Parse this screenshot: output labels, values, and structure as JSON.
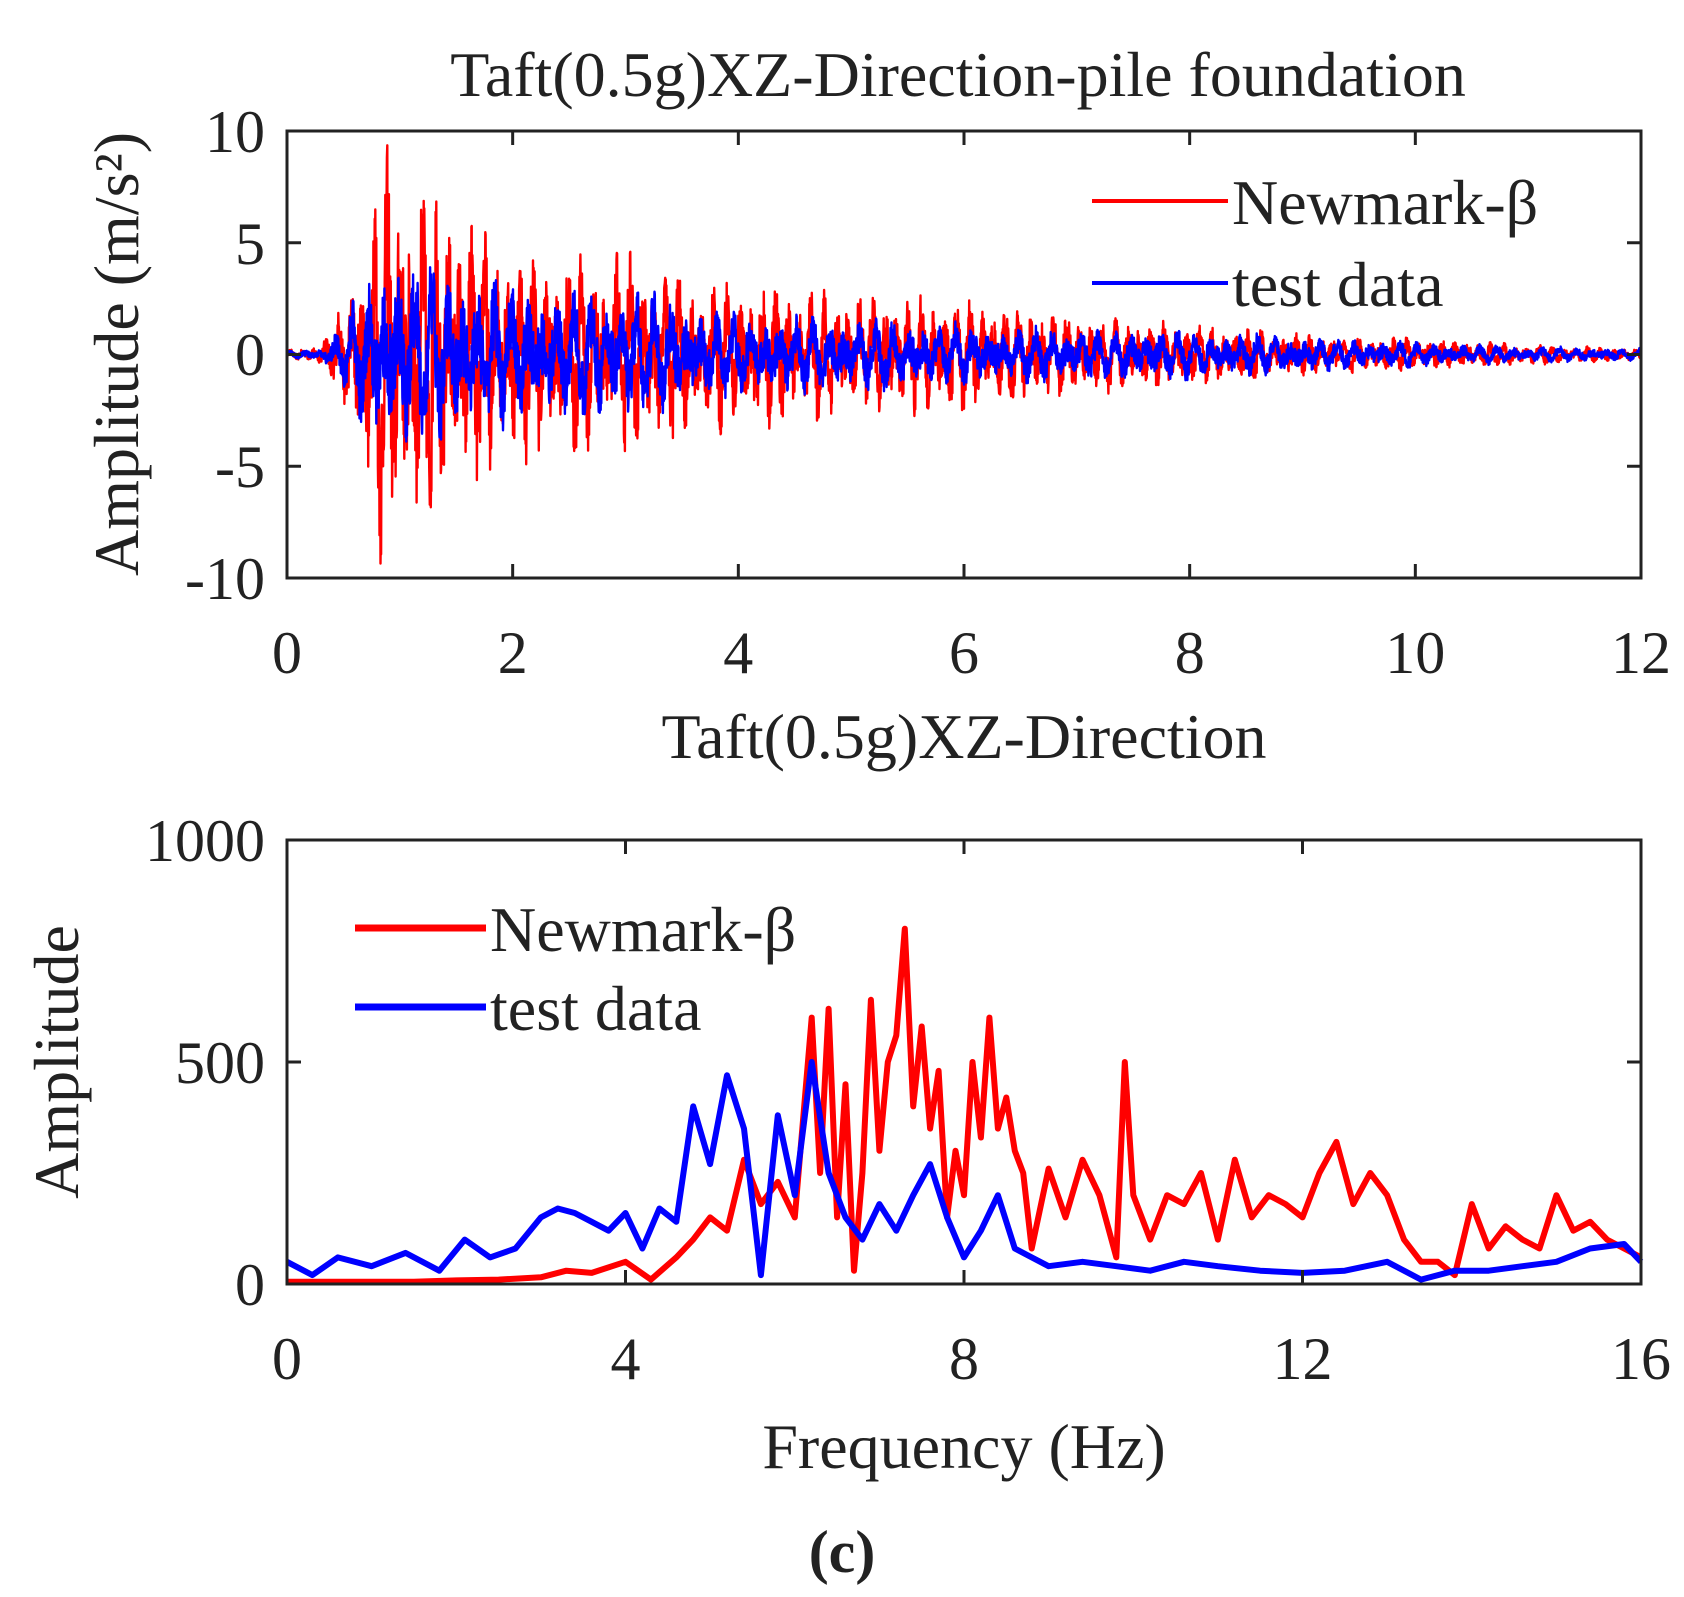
{
  "caption": "(c)",
  "colors": {
    "newmark": "#ff0000",
    "test": "#0000ff",
    "axis": "#222222"
  },
  "chart_data": [
    {
      "type": "line",
      "title": "Taft(0.5g)XZ-Direction-pile foundation",
      "xlabel": "Taft(0.5g)XZ-Direction",
      "ylabel": "Amplitude (m/s²)",
      "xlim": [
        0,
        12
      ],
      "ylim": [
        -10,
        10
      ],
      "xticks": [
        0,
        2,
        4,
        6,
        8,
        10,
        12
      ],
      "yticks": [
        -10,
        -5,
        0,
        5,
        10
      ],
      "xtick_labels": [
        "0",
        "2",
        "4",
        "6",
        "8",
        "10",
        "12"
      ],
      "ytick_labels": [
        "-10",
        "-5",
        "0",
        "5",
        "10"
      ],
      "legend_location": "top-right",
      "series": [
        {
          "name": "Newmark-β",
          "color": "#ff0000",
          "note": "approximate envelope of the Newmark-β time history (peak amplitude vs time)",
          "envelope": {
            "t": [
              0,
              0.3,
              0.5,
              0.7,
              0.8,
              1.0,
              1.3,
              1.6,
              2.0,
              2.5,
              3.0,
              3.5,
              4.0,
              5.0,
              6.0,
              7.0,
              8.0,
              9.0,
              10.0,
              11.0,
              12.0
            ],
            "amp": [
              0.2,
              0.5,
              2.5,
              6.0,
              10.0,
              9.0,
              8.5,
              7.0,
              5.0,
              5.0,
              5.0,
              4.0,
              3.5,
              3.0,
              2.8,
              2.0,
              1.5,
              1.0,
              0.8,
              0.5,
              0.3
            ]
          }
        },
        {
          "name": "test data",
          "color": "#0000ff",
          "note": "approximate envelope of the measured time history (peak amplitude vs time)",
          "envelope": {
            "t": [
              0,
              0.3,
              0.5,
              0.7,
              0.9,
              1.2,
              1.6,
              2.0,
              2.5,
              3.0,
              3.5,
              4.0,
              5.0,
              6.0,
              7.0,
              8.0,
              9.0,
              10.0,
              11.0,
              12.0
            ],
            "amp": [
              0.2,
              0.3,
              1.5,
              4.0,
              5.0,
              4.5,
              4.0,
              3.5,
              3.0,
              3.5,
              2.5,
              2.0,
              1.8,
              1.5,
              1.3,
              1.2,
              0.9,
              0.6,
              0.4,
              0.3
            ]
          }
        }
      ]
    },
    {
      "type": "line",
      "title": "",
      "xlabel": "Frequency (Hz)",
      "ylabel": "Amplitude",
      "xlim": [
        0,
        16
      ],
      "ylim": [
        0,
        1000
      ],
      "xticks": [
        0,
        4,
        8,
        12,
        16
      ],
      "yticks": [
        0,
        500,
        1000
      ],
      "xtick_labels": [
        "0",
        "4",
        "8",
        "12",
        "16"
      ],
      "ytick_labels": [
        "0",
        "500",
        "1000"
      ],
      "legend_location": "top-left",
      "series": [
        {
          "name": "Newmark-β",
          "color": "#ff0000",
          "x": [
            0,
            0.5,
            1.0,
            1.5,
            2.0,
            2.5,
            3.0,
            3.3,
            3.6,
            4.0,
            4.3,
            4.6,
            4.8,
            5.0,
            5.2,
            5.4,
            5.6,
            5.8,
            6.0,
            6.2,
            6.3,
            6.4,
            6.5,
            6.6,
            6.7,
            6.8,
            6.9,
            7.0,
            7.1,
            7.2,
            7.3,
            7.4,
            7.5,
            7.6,
            7.7,
            7.8,
            7.9,
            8.0,
            8.1,
            8.2,
            8.3,
            8.4,
            8.5,
            8.6,
            8.7,
            8.8,
            9.0,
            9.2,
            9.4,
            9.6,
            9.8,
            9.9,
            10.0,
            10.2,
            10.4,
            10.6,
            10.8,
            11.0,
            11.2,
            11.4,
            11.6,
            11.8,
            12.0,
            12.2,
            12.4,
            12.6,
            12.8,
            13.0,
            13.2,
            13.4,
            13.6,
            13.8,
            14.0,
            14.2,
            14.4,
            14.6,
            14.8,
            15.0,
            15.2,
            15.4,
            15.6,
            15.8,
            16.0
          ],
          "y": [
            5,
            5,
            5,
            5,
            8,
            10,
            15,
            30,
            25,
            50,
            10,
            60,
            100,
            150,
            120,
            280,
            180,
            230,
            150,
            600,
            250,
            620,
            150,
            450,
            30,
            250,
            640,
            300,
            500,
            560,
            800,
            400,
            580,
            350,
            480,
            150,
            300,
            200,
            500,
            330,
            600,
            350,
            420,
            300,
            250,
            80,
            260,
            150,
            280,
            200,
            60,
            500,
            200,
            100,
            200,
            180,
            250,
            100,
            280,
            150,
            200,
            180,
            150,
            250,
            320,
            180,
            250,
            200,
            100,
            50,
            50,
            20,
            180,
            80,
            130,
            100,
            80,
            200,
            120,
            140,
            100,
            80,
            60
          ]
        },
        {
          "name": "test data",
          "color": "#0000ff",
          "x": [
            0,
            0.3,
            0.6,
            1.0,
            1.4,
            1.8,
            2.1,
            2.4,
            2.7,
            3.0,
            3.2,
            3.4,
            3.6,
            3.8,
            4.0,
            4.2,
            4.4,
            4.6,
            4.8,
            5.0,
            5.2,
            5.4,
            5.6,
            5.8,
            6.0,
            6.2,
            6.4,
            6.6,
            6.8,
            7.0,
            7.2,
            7.4,
            7.6,
            7.8,
            8.0,
            8.2,
            8.4,
            8.6,
            8.8,
            9.0,
            9.4,
            9.8,
            10.2,
            10.6,
            11.0,
            11.5,
            12.0,
            12.5,
            13.0,
            13.4,
            13.8,
            14.2,
            14.6,
            15.0,
            15.4,
            15.8,
            16.0
          ],
          "y": [
            50,
            20,
            60,
            40,
            70,
            30,
            100,
            60,
            80,
            150,
            170,
            160,
            140,
            120,
            160,
            80,
            170,
            140,
            400,
            270,
            470,
            350,
            20,
            380,
            200,
            500,
            250,
            150,
            100,
            180,
            120,
            200,
            270,
            150,
            60,
            120,
            200,
            80,
            60,
            40,
            50,
            40,
            30,
            50,
            40,
            30,
            25,
            30,
            50,
            10,
            30,
            30,
            40,
            50,
            80,
            90,
            50
          ]
        }
      ]
    }
  ]
}
